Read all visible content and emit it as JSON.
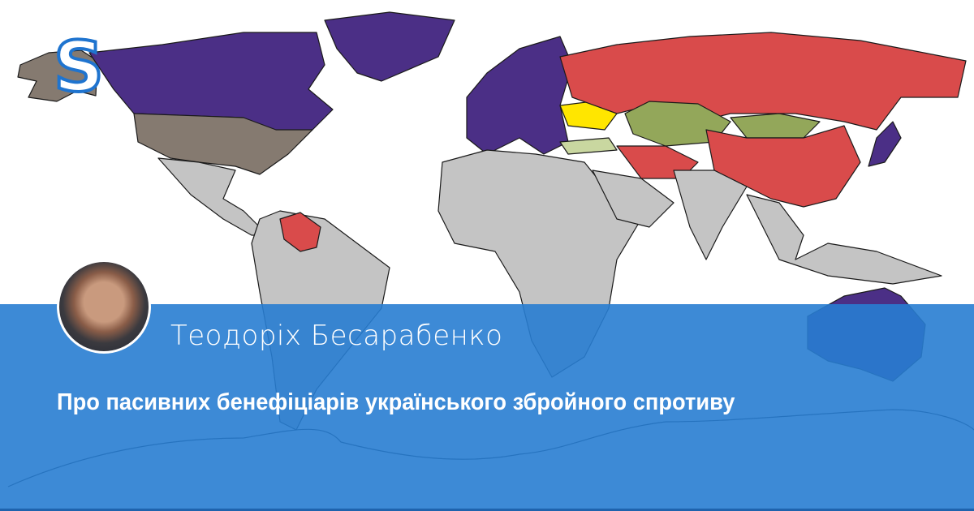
{
  "logo": {
    "letter": "S",
    "color": "#1f74cf"
  },
  "author": {
    "name": "Теодоріх Бесарабенко"
  },
  "article": {
    "title": "Про пасивних бенефіціарів українського збройного спротиву"
  },
  "colors": {
    "overlay": "#2a7dd2",
    "purple": "#4b2f86",
    "red": "#d94b4b",
    "taupe": "#857a70",
    "green": "#93a75a",
    "yellow": "#ffe600",
    "gray": "#c4c4c4",
    "orange": "#e0a030"
  }
}
